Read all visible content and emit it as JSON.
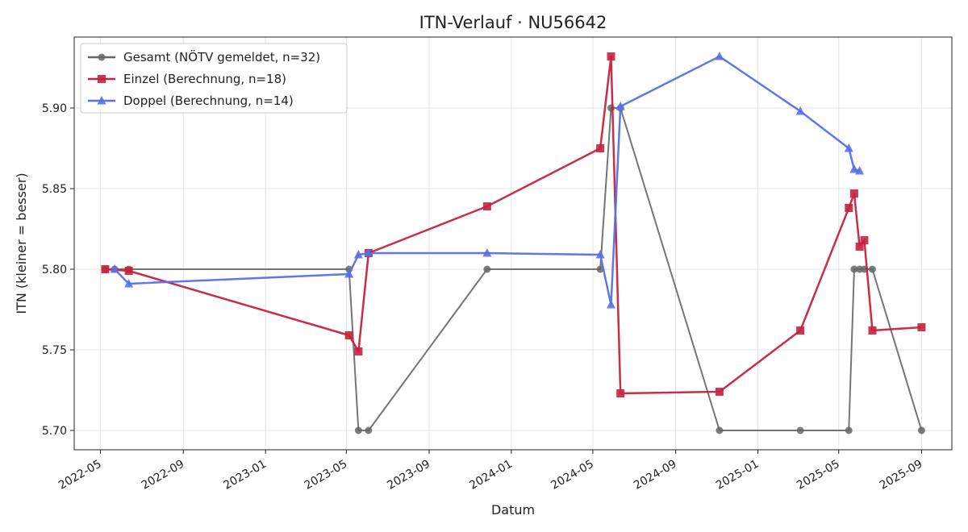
{
  "chart_data": {
    "type": "line",
    "title": "ITN-Verlauf · NU56642",
    "xlabel": "Datum",
    "ylabel": "ITN  (kleiner = besser)",
    "x_axis_type": "date",
    "xlim": [
      "2022-03-23",
      "2025-10-16"
    ],
    "ylim": [
      5.688,
      5.944
    ],
    "x_ticks": [
      "2022-05",
      "2022-09",
      "2023-01",
      "2023-05",
      "2023-09",
      "2024-01",
      "2024-05",
      "2024-09",
      "2025-01",
      "2025-05",
      "2025-09"
    ],
    "y_ticks": [
      "5.70",
      "5.75",
      "5.80",
      "5.85",
      "5.90"
    ],
    "grid": true,
    "legend_position": "top-left",
    "series": [
      {
        "name": "Gesamt (NÖTV gemeldet, n=32)",
        "color": "#666666",
        "marker": "circle",
        "points": [
          [
            "2022-05-08",
            5.8
          ],
          [
            "2022-05-22",
            5.8
          ],
          [
            "2022-06-12",
            5.8
          ],
          [
            "2023-05-05",
            5.8
          ],
          [
            "2023-05-19",
            5.7
          ],
          [
            "2023-06-03",
            5.7
          ],
          [
            "2023-11-26",
            5.8
          ],
          [
            "2024-05-12",
            5.8
          ],
          [
            "2024-05-28",
            5.9
          ],
          [
            "2024-06-11",
            5.9
          ],
          [
            "2024-11-05",
            5.7
          ],
          [
            "2025-03-05",
            5.7
          ],
          [
            "2025-05-16",
            5.7
          ],
          [
            "2025-05-24",
            5.8
          ],
          [
            "2025-06-01",
            5.8
          ],
          [
            "2025-06-08",
            5.8
          ],
          [
            "2025-06-20",
            5.8
          ],
          [
            "2025-09-01",
            5.7
          ]
        ]
      },
      {
        "name": "Einzel (Berechnung, n=18)",
        "color": "#c8213f",
        "marker": "square",
        "points": [
          [
            "2022-05-08",
            5.8
          ],
          [
            "2022-06-12",
            5.799
          ],
          [
            "2023-05-05",
            5.759
          ],
          [
            "2023-05-19",
            5.749
          ],
          [
            "2023-06-03",
            5.81
          ],
          [
            "2023-11-26",
            5.839
          ],
          [
            "2024-05-12",
            5.875
          ],
          [
            "2024-05-28",
            5.932
          ],
          [
            "2024-06-11",
            5.723
          ],
          [
            "2024-11-05",
            5.724
          ],
          [
            "2025-03-05",
            5.762
          ],
          [
            "2025-05-16",
            5.838
          ],
          [
            "2025-05-24",
            5.847
          ],
          [
            "2025-06-01",
            5.814
          ],
          [
            "2025-06-08",
            5.818
          ],
          [
            "2025-06-20",
            5.762
          ],
          [
            "2025-09-01",
            5.764
          ]
        ]
      },
      {
        "name": "Doppel (Berechnung, n=14)",
        "color": "#5670ea",
        "marker": "triangle",
        "points": [
          [
            "2022-05-22",
            5.8
          ],
          [
            "2022-06-12",
            5.791
          ],
          [
            "2023-05-05",
            5.797
          ],
          [
            "2023-05-19",
            5.809
          ],
          [
            "2023-06-03",
            5.81
          ],
          [
            "2023-11-26",
            5.81
          ],
          [
            "2024-05-12",
            5.809
          ],
          [
            "2024-05-28",
            5.778
          ],
          [
            "2024-06-11",
            5.901
          ],
          [
            "2024-11-05",
            5.932
          ],
          [
            "2025-03-05",
            5.898
          ],
          [
            "2025-05-16",
            5.875
          ],
          [
            "2025-05-24",
            5.862
          ],
          [
            "2025-06-01",
            5.861
          ]
        ]
      }
    ]
  }
}
